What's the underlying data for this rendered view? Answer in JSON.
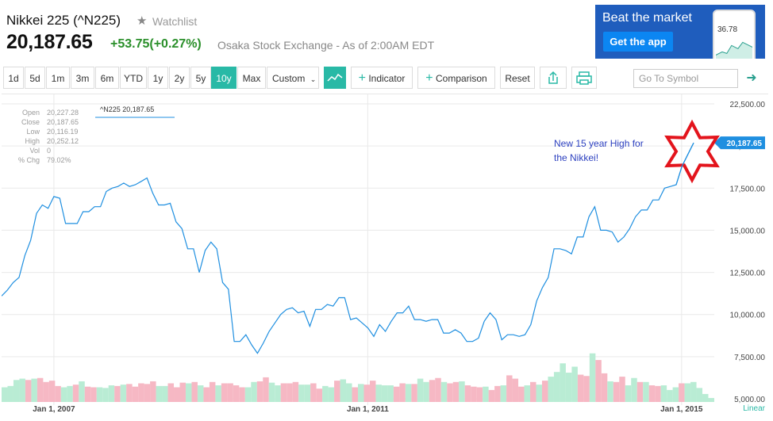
{
  "header": {
    "title": "Nikkei 225 (^N225)",
    "watchlist_label": "Watchlist",
    "price": "20,187.65",
    "change": "+53.75(+0.27%)",
    "exchange": "Osaka Stock Exchange - As of 2:00AM EDT"
  },
  "ad": {
    "headline": "Beat the market",
    "button": "Get the app",
    "phone_value": "36.78"
  },
  "toolbar": {
    "ranges": [
      "1d",
      "5d",
      "1m",
      "3m",
      "6m",
      "YTD",
      "1y",
      "2y",
      "5y",
      "10y",
      "Max"
    ],
    "active_range": "10y",
    "custom_label": "Custom",
    "indicator_label": "Indicator",
    "comparison_label": "Comparison",
    "reset_label": "Reset",
    "symbol_placeholder": "Go To Symbol"
  },
  "colors": {
    "accent": "#29b9a6",
    "line": "#1f8fe0",
    "up_volume": "#b9ecd4",
    "down_volume": "#f6b8c4",
    "annotation": "#2b3fbf",
    "star": "#e3141c"
  },
  "chart_data": {
    "type": "line",
    "series": [
      {
        "name": "^N225",
        "values": [
          11100,
          11450,
          11900,
          12200,
          13500,
          14400,
          16000,
          16500,
          16300,
          17000,
          16900,
          15400,
          15400,
          15400,
          16100,
          16100,
          16400,
          16400,
          17300,
          17500,
          17600,
          17800,
          17600,
          17700,
          17900,
          18100,
          17200,
          16500,
          16500,
          16600,
          15500,
          15100,
          13900,
          13900,
          12500,
          13800,
          14300,
          13900,
          11900,
          11500,
          8400,
          8400,
          8800,
          8200,
          7700,
          8300,
          9000,
          9500,
          10000,
          10300,
          10400,
          10100,
          10200,
          9300,
          10300,
          10300,
          10600,
          10500,
          11000,
          11000,
          9700,
          9800,
          9500,
          9200,
          8700,
          9400,
          9000,
          9600,
          10100,
          10100,
          10500,
          9700,
          9700,
          9600,
          9700,
          9700,
          8900,
          8900,
          9100,
          8900,
          8400,
          8400,
          8600,
          9600,
          10100,
          9700,
          8500,
          8800,
          8800,
          8700,
          8800,
          9400,
          10800,
          11600,
          12200,
          13900,
          13900,
          13800,
          13600,
          14600,
          14600,
          15800,
          16400,
          15000,
          15000,
          14900,
          14300,
          14600,
          15100,
          15800,
          16200,
          16200,
          16800,
          16800,
          17500,
          17600,
          17700,
          18800,
          19500,
          20187.65
        ]
      }
    ],
    "x_start": "2006-05",
    "x_end": "2015-06",
    "x_ticks": [
      "Jan 1, 2007",
      "Jan 1, 2011",
      "Jan 1, 2015"
    ],
    "y_ticks": [
      "5,000.00",
      "7,500.00",
      "10,000.00",
      "12,500.00",
      "15,000.00",
      "17,500.00",
      "20,000.00",
      "22,500.00"
    ],
    "ylim": [
      5000,
      22500
    ],
    "scale_label": "Linear",
    "last_value_label": "20,187.65",
    "volume": [
      22,
      24,
      33,
      35,
      33,
      35,
      36,
      30,
      32,
      24,
      22,
      24,
      26,
      31,
      23,
      22,
      22,
      21,
      25,
      24,
      26,
      27,
      23,
      28,
      27,
      31,
      24,
      24,
      28,
      22,
      29,
      28,
      30,
      25,
      22,
      30,
      25,
      28,
      28,
      25,
      22,
      22,
      30,
      31,
      37,
      29,
      25,
      28,
      28,
      30,
      26,
      26,
      28,
      20,
      24,
      22,
      32,
      34,
      28,
      22,
      27,
      26,
      32,
      26,
      25,
      25,
      23,
      28,
      27,
      27,
      35,
      30,
      33,
      36,
      30,
      28,
      30,
      31,
      25,
      23,
      22,
      23,
      18,
      24,
      25,
      40,
      35,
      23,
      25,
      30,
      26,
      32,
      38,
      45,
      58,
      44,
      53,
      41,
      39,
      73,
      63,
      43,
      31,
      30,
      38,
      25,
      36,
      30,
      30,
      25,
      24,
      25,
      18,
      22,
      28,
      28,
      30,
      21,
      12,
      6
    ],
    "volume_down": [
      0,
      0,
      0,
      0,
      1,
      0,
      1,
      1,
      1,
      1,
      0,
      0,
      1,
      0,
      1,
      1,
      0,
      0,
      0,
      1,
      0,
      1,
      1,
      1,
      1,
      1,
      0,
      0,
      1,
      1,
      1,
      0,
      1,
      0,
      1,
      1,
      0,
      1,
      1,
      1,
      1,
      0,
      0,
      1,
      1,
      0,
      0,
      1,
      1,
      1,
      0,
      0,
      1,
      1,
      0,
      0,
      1,
      0,
      0,
      1,
      0,
      1,
      1,
      0,
      0,
      0,
      1,
      1,
      0,
      1,
      0,
      0,
      1,
      1,
      0,
      1,
      1,
      0,
      1,
      1,
      1,
      0,
      1,
      1,
      0,
      1,
      1,
      1,
      0,
      1,
      0,
      1,
      0,
      0,
      0,
      0,
      0,
      1,
      1,
      0,
      1,
      1,
      0,
      1,
      1,
      0,
      0,
      1,
      0,
      1,
      1,
      0,
      0,
      0,
      1,
      0,
      0,
      0,
      0,
      0
    ],
    "legend_label": "^N225 20,187.65",
    "info": [
      {
        "label": "Open",
        "value": "20,227.28"
      },
      {
        "label": "Close",
        "value": "20,187.65"
      },
      {
        "label": "Low",
        "value": "20,116.19"
      },
      {
        "label": "High",
        "value": "20,252.12"
      },
      {
        "label": "Vol",
        "value": "0"
      },
      {
        "label": "% Chg",
        "value": "79.02%"
      }
    ],
    "annotation": "New 15 year High for the Nikkei!"
  }
}
